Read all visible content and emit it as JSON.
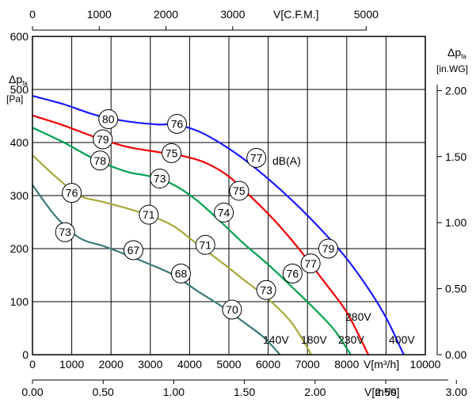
{
  "chart_data": {
    "type": "line",
    "title": "",
    "x_axis_bottom": {
      "label": "V[m³/h]",
      "range": [
        0,
        10000
      ],
      "ticks": [
        "0",
        "1000",
        "2000",
        "3000",
        "4000",
        "5000",
        "6000",
        "7000",
        "8000",
        "10000"
      ]
    },
    "x_axis_bottom2": {
      "label": "V[m³/s]",
      "range": [
        0,
        2.78
      ],
      "ticks": [
        "0.00",
        "0.50",
        "1.00",
        "1.50",
        "2.00",
        "2.50",
        "3.00"
      ]
    },
    "x_axis_top": {
      "label": "V[C.F.M.]",
      "range": [
        0,
        5886
      ],
      "ticks": [
        "0",
        "1000",
        "2000",
        "3000",
        "5000"
      ]
    },
    "y_axis_left": {
      "label_main": "Δp",
      "label_sub": "fa",
      "unit": "[Pa]",
      "range": [
        0,
        600
      ],
      "ticks": [
        "0",
        "100",
        "200",
        "300",
        "400",
        "500",
        "600"
      ]
    },
    "y_axis_right": {
      "label_main": "Δp",
      "label_sub": "fa",
      "unit": "[in.WG]",
      "range": [
        0,
        2.41
      ],
      "ticks": [
        "0.00",
        "0.50",
        "1.00",
        "1.50",
        "2.00"
      ]
    },
    "grid": true,
    "series": [
      {
        "name": "400V",
        "color": "#1a1aff",
        "x": [
          0,
          800,
          1600,
          2400,
          3200,
          3600,
          4200,
          4800,
          5500,
          6300,
          7100,
          7900,
          8500,
          9000,
          9450
        ],
        "y": [
          488,
          472,
          452,
          440,
          434,
          434,
          422,
          398,
          362,
          312,
          255,
          190,
          130,
          70,
          0
        ]
      },
      {
        "name": "280V",
        "color": "#ee0000",
        "x": [
          0,
          800,
          1600,
          2400,
          3200,
          3800,
          4400,
          5000,
          5600,
          6200,
          6800,
          7400,
          8000,
          8550
        ],
        "y": [
          451,
          432,
          410,
          392,
          382,
          375,
          362,
          336,
          295,
          250,
          198,
          140,
          80,
          0
        ]
      },
      {
        "name": "230V",
        "color": "#00a050",
        "x": [
          0,
          800,
          1600,
          2400,
          3000,
          3600,
          4200,
          4800,
          5400,
          6000,
          6600,
          7200,
          7700,
          8100
        ],
        "y": [
          428,
          400,
          368,
          345,
          336,
          320,
          290,
          250,
          208,
          170,
          128,
          85,
          45,
          0
        ]
      },
      {
        "name": "180V",
        "color": "#a8a83a",
        "x": [
          0,
          600,
          1200,
          1800,
          2400,
          3000,
          3600,
          4200,
          4800,
          5400,
          6000,
          6600,
          7100
        ],
        "y": [
          376,
          335,
          300,
          288,
          276,
          262,
          242,
          208,
          175,
          140,
          105,
          60,
          0
        ]
      },
      {
        "name": "140V",
        "color": "#3a7a7a",
        "x": [
          0,
          600,
          1200,
          1800,
          2400,
          3000,
          3600,
          4200,
          4800,
          5400,
          5900,
          6300
        ],
        "y": [
          320,
          260,
          220,
          205,
          188,
          170,
          150,
          120,
          92,
          60,
          32,
          0
        ]
      }
    ],
    "bubbles": [
      {
        "label": "80",
        "x": 1930,
        "y": 444
      },
      {
        "label": "76",
        "x": 3680,
        "y": 435
      },
      {
        "label": "77",
        "x": 5700,
        "y": 371
      },
      {
        "label": "79",
        "x": 7530,
        "y": 200
      },
      {
        "label": "79",
        "x": 1790,
        "y": 406
      },
      {
        "label": "75",
        "x": 3540,
        "y": 380
      },
      {
        "label": "75",
        "x": 5260,
        "y": 309
      },
      {
        "label": "77",
        "x": 7080,
        "y": 172
      },
      {
        "label": "78",
        "x": 1720,
        "y": 366
      },
      {
        "label": "73",
        "x": 3240,
        "y": 332
      },
      {
        "label": "74",
        "x": 4870,
        "y": 268
      },
      {
        "label": "76",
        "x": 6620,
        "y": 153
      },
      {
        "label": "76",
        "x": 1000,
        "y": 305
      },
      {
        "label": "71",
        "x": 2960,
        "y": 264
      },
      {
        "label": "71",
        "x": 4400,
        "y": 207
      },
      {
        "label": "73",
        "x": 5950,
        "y": 122
      },
      {
        "label": "73",
        "x": 830,
        "y": 231
      },
      {
        "label": "67",
        "x": 2570,
        "y": 197
      },
      {
        "label": "68",
        "x": 3780,
        "y": 153
      },
      {
        "label": "70",
        "x": 5080,
        "y": 85
      }
    ],
    "dba_label": "dB(A)",
    "voltage_labels": [
      "400V",
      "280V",
      "230V",
      "180V",
      "140V"
    ]
  }
}
